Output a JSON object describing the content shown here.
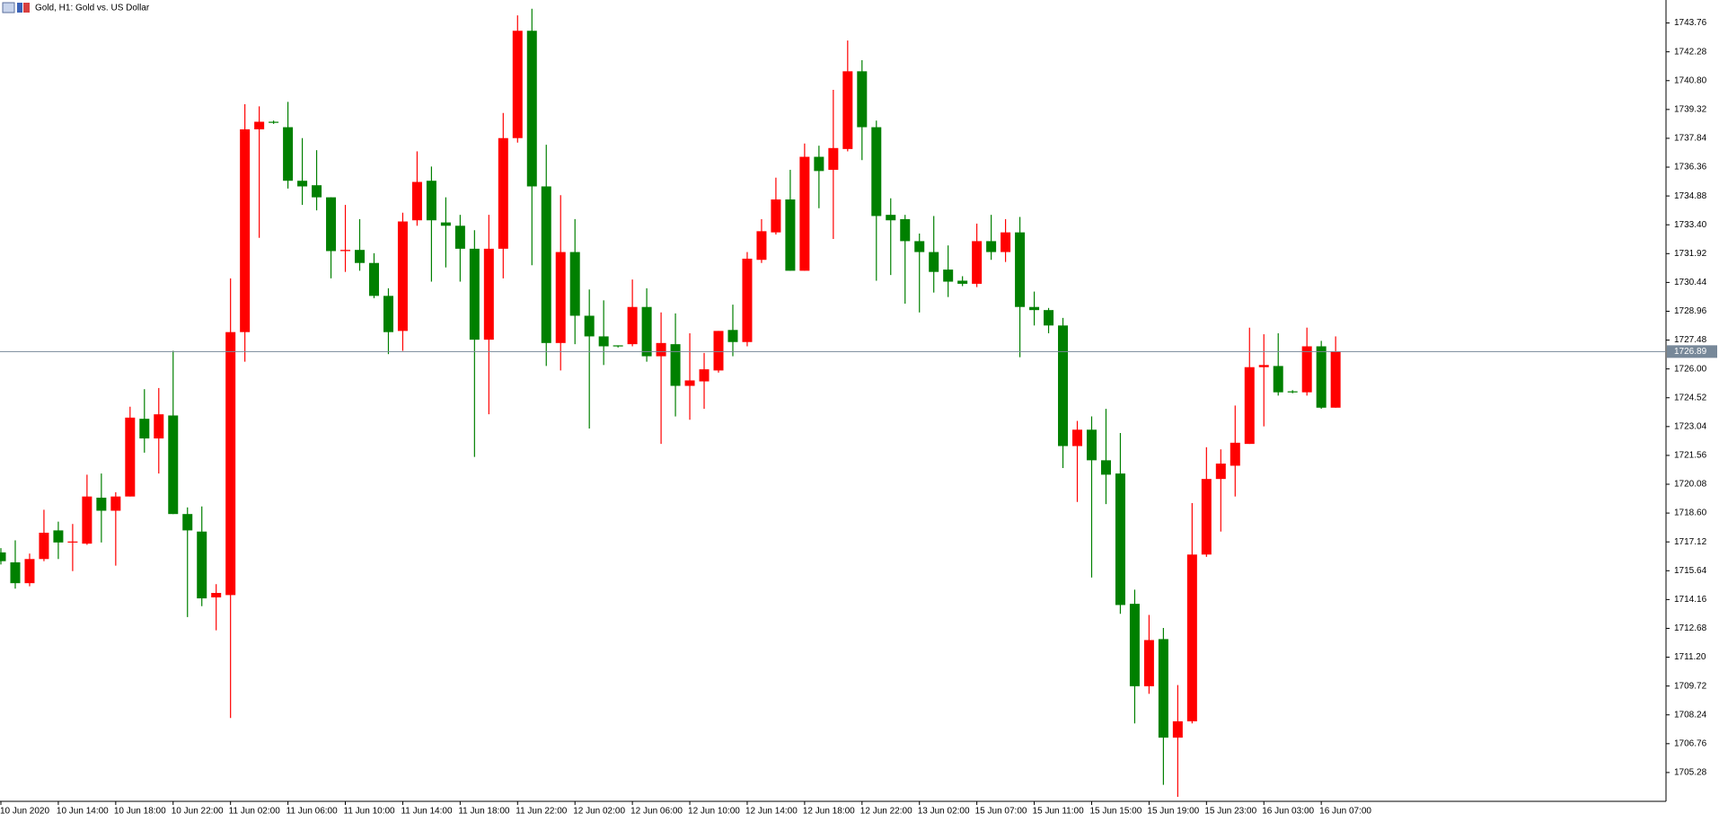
{
  "chart_data": {
    "type": "candlestick",
    "title": "Gold, H1:  Gold vs. US Dollar",
    "categories": [
      "10 Jun 2020",
      null,
      null,
      null,
      "10 Jun 14:00",
      null,
      null,
      null,
      "10 Jun 18:00",
      null,
      null,
      null,
      "10 Jun 22:00",
      null,
      null,
      null,
      "11 Jun 02:00",
      null,
      null,
      null,
      "11 Jun 06:00",
      null,
      null,
      null,
      "11 Jun 10:00",
      null,
      null,
      null,
      "11 Jun 14:00",
      null,
      null,
      null,
      "11 Jun 18:00",
      null,
      null,
      null,
      "11 Jun 22:00",
      null,
      null,
      null,
      "12 Jun 02:00",
      null,
      null,
      null,
      "12 Jun 06:00",
      null,
      null,
      null,
      "12 Jun 10:00",
      null,
      null,
      null,
      "12 Jun 14:00",
      null,
      null,
      null,
      "12 Jun 18:00",
      null,
      null,
      null,
      "12 Jun 22:00",
      null,
      null,
      null,
      "13 Jun 02:00",
      null,
      null,
      null,
      "15 Jun 07:00",
      null,
      null,
      null,
      "15 Jun 11:00",
      null,
      null,
      null,
      "15 Jun 15:00",
      null,
      null,
      null,
      "15 Jun 19:00",
      null,
      null,
      null,
      "15 Jun 23:00",
      null,
      null,
      null,
      "16 Jun 03:00",
      null,
      null,
      null,
      "16 Jun 07:00",
      null
    ],
    "open": [
      1716.58,
      1716.07,
      1715.0,
      1716.24,
      1717.71,
      1717.09,
      1717.03,
      1719.39,
      1718.72,
      1719.45,
      1723.44,
      1722.43,
      1723.61,
      1718.55,
      1717.65,
      1714.27,
      1714.39,
      1727.89,
      1738.3,
      1738.69,
      1738.41,
      1735.66,
      1735.43,
      1734.81,
      1732.05,
      1732.11,
      1731.44,
      1729.75,
      1727.95,
      1733.63,
      1735.66,
      1733.52,
      1733.35,
      1732.17,
      1727.5,
      1732.17,
      1737.85,
      1743.36,
      1735.37,
      1727.33,
      1732.0,
      1728.73,
      1727.67,
      1727.21,
      1727.27,
      1729.18,
      1726.65,
      1727.27,
      1725.13,
      1725.36,
      1725.92,
      1728.0,
      1727.38,
      1731.6,
      1733.01,
      1734.7,
      1731.04,
      1736.89,
      1736.22,
      1737.29,
      1741.28,
      1738.41,
      1733.91,
      1733.69,
      1732.56,
      1732.0,
      1731.1,
      1730.53,
      1730.37,
      1732.56,
      1732.0,
      1733.01,
      1729.18,
      1729.02,
      1728.23,
      1722.04,
      1722.88,
      1721.31,
      1720.63,
      1713.94,
      1709.71,
      1712.13,
      1707.07,
      1707.91,
      1716.47,
      1720.35,
      1721.03,
      1722.15,
      1726.09,
      1726.15,
      1724.85,
      1724.8,
      1727.16,
      1724.01
    ],
    "high": [
      1716.8,
      1717.2,
      1716.52,
      1718.77,
      1718.16,
      1718.04,
      1720.57,
      1720.63,
      1719.67,
      1724.06,
      1724.96,
      1725.02,
      1726.93,
      1718.89,
      1718.94,
      1714.95,
      1730.65,
      1739.59,
      1739.48,
      1738.75,
      1739.71,
      1737.85,
      1737.23,
      1734.81,
      1734.42,
      1733.69,
      1731.94,
      1730.14,
      1734.02,
      1737.17,
      1736.39,
      1734.81,
      1733.91,
      1733.12,
      1733.91,
      1739.14,
      1744.15,
      1744.49,
      1737.51,
      1734.92,
      1733.69,
      1730.08,
      1729.52,
      1727.21,
      1730.59,
      1730.14,
      1728.9,
      1728.85,
      1727.83,
      1726.82,
      1727.95,
      1729.3,
      1732.0,
      1733.69,
      1735.82,
      1736.22,
      1737.57,
      1737.46,
      1740.33,
      1742.86,
      1741.85,
      1738.75,
      1734.76,
      1733.91,
      1732.95,
      1733.85,
      1732.34,
      1730.76,
      1733.46,
      1733.91,
      1733.69,
      1733.8,
      1729.97,
      1729.13,
      1728.62,
      1723.33,
      1723.56,
      1723.95,
      1722.71,
      1714.67,
      1713.37,
      1712.7,
      1709.77,
      1719.11,
      1721.98,
      1721.87,
      1724.12,
      1728.12,
      1727.78,
      1727.83,
      1724.91,
      1728.12,
      1727.44,
      1727.67
    ],
    "low": [
      1715.96,
      1714.72,
      1714.84,
      1716.13,
      1716.24,
      1715.62,
      1716.97,
      1717.09,
      1715.9,
      1719.45,
      1721.7,
      1720.63,
      1718.55,
      1713.26,
      1713.82,
      1712.58,
      1708.08,
      1726.37,
      1732.73,
      1738.58,
      1735.26,
      1734.42,
      1734.14,
      1730.65,
      1730.98,
      1731.04,
      1729.63,
      1726.76,
      1726.93,
      1733.35,
      1730.48,
      1731.21,
      1730.48,
      1721.48,
      1723.67,
      1730.65,
      1737.62,
      1731.32,
      1726.15,
      1725.92,
      1727.27,
      1722.94,
      1726.2,
      1727.1,
      1727.16,
      1726.37,
      1722.15,
      1723.56,
      1723.39,
      1723.95,
      1725.81,
      1726.65,
      1727.16,
      1731.44,
      1732.9,
      1731.04,
      1731.04,
      1734.25,
      1732.67,
      1737.17,
      1736.72,
      1730.53,
      1730.82,
      1729.35,
      1728.9,
      1729.92,
      1729.69,
      1730.25,
      1730.2,
      1731.6,
      1731.49,
      1726.6,
      1728.23,
      1727.83,
      1720.91,
      1719.17,
      1715.29,
      1719.06,
      1713.43,
      1707.8,
      1709.32,
      1704.65,
      1704.03,
      1707.8,
      1716.35,
      1717.65,
      1719.45,
      1722.15,
      1723.05,
      1724.63,
      1724.75,
      1724.63,
      1723.95,
      1724.01
    ],
    "close": [
      1716.13,
      1715.0,
      1716.24,
      1717.59,
      1717.09,
      1717.14,
      1719.45,
      1718.72,
      1719.45,
      1723.5,
      1722.43,
      1723.67,
      1718.55,
      1717.71,
      1714.22,
      1714.5,
      1727.89,
      1738.3,
      1738.69,
      1738.64,
      1735.66,
      1735.37,
      1734.81,
      1732.05,
      1732.11,
      1731.44,
      1729.75,
      1727.89,
      1733.57,
      1735.6,
      1733.63,
      1733.35,
      1732.17,
      1727.5,
      1732.17,
      1737.85,
      1743.36,
      1735.37,
      1727.33,
      1732.0,
      1728.73,
      1727.67,
      1727.16,
      1727.16,
      1729.18,
      1726.65,
      1727.33,
      1725.13,
      1725.41,
      1725.98,
      1727.95,
      1727.38,
      1731.66,
      1733.07,
      1734.7,
      1731.04,
      1736.89,
      1736.16,
      1737.34,
      1741.28,
      1738.41,
      1733.85,
      1733.63,
      1732.56,
      1732.0,
      1730.98,
      1730.48,
      1730.37,
      1732.56,
      1732.0,
      1733.01,
      1729.18,
      1729.02,
      1728.23,
      1722.04,
      1722.88,
      1721.31,
      1720.57,
      1713.88,
      1709.71,
      1712.08,
      1707.07,
      1707.91,
      1716.47,
      1720.35,
      1721.14,
      1722.21,
      1726.09,
      1726.2,
      1724.8,
      1724.8,
      1727.16,
      1724.01,
      1726.88
    ],
    "up_color": "#ff0000",
    "down_color": "#008000",
    "ylim": [
      1703.8,
      1744.94
    ],
    "yticks": [
      1743.76,
      1742.28,
      {
        "value": 1740.8,
        "label": "1740.80"
      },
      1739.32,
      1737.84,
      1736.36,
      1734.88,
      {
        "value": 1733.4,
        "label": "1733.40"
      },
      1731.92,
      1730.44,
      1728.96,
      1727.48,
      {
        "value": 1726,
        "label": "1726.00"
      },
      1724.52,
      1723.04,
      1721.56,
      1720.08,
      {
        "value": 1718.6,
        "label": "1718.60"
      },
      1717.12,
      1715.64,
      1714.16,
      1712.68,
      {
        "value": 1711.2,
        "label": "1711.20"
      },
      1709.72,
      1708.24,
      1706.76,
      1705.28
    ],
    "last_price": 1726.89,
    "last_price_color": "#778899",
    "grid": false
  }
}
